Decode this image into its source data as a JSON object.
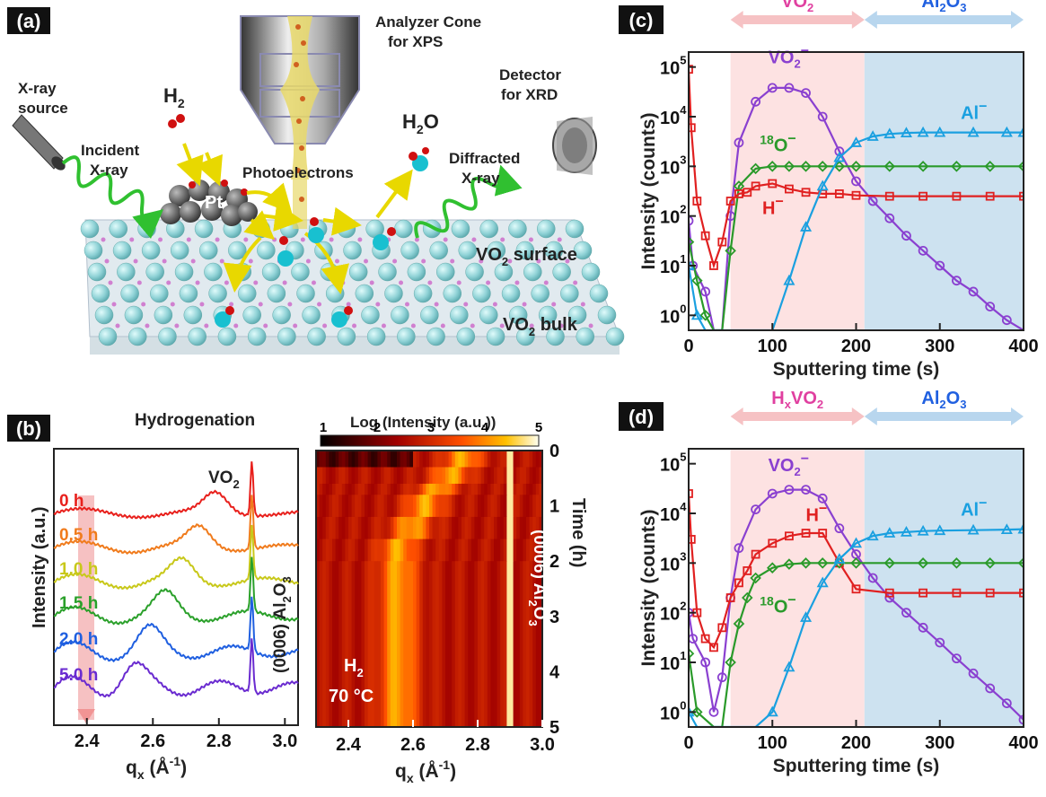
{
  "panel_a": {
    "label": "(a)",
    "labels": {
      "xray_source_1": "X-ray",
      "xray_source_2": "source",
      "incident_1": "Incident",
      "incident_2": "X-ray",
      "h2": "H",
      "h2_sub": "2",
      "analyzer_1": "Analyzer Cone",
      "analyzer_2": "for XPS",
      "detector_1": "Detector",
      "detector_2": "for XRD",
      "h2o_h": "H",
      "h2o_sub": "2",
      "h2o_o": "O",
      "diffracted_1": "Diffracted",
      "diffracted_2": "X-ray",
      "photoelectrons": "Photoelectrons",
      "pt": "Pt",
      "vo2_surface_a": "VO",
      "vo2_surface_sub": "2",
      "vo2_surface_b": " surface",
      "vo2_bulk_a": "VO",
      "vo2_bulk_sub": "2",
      "vo2_bulk_b": " bulk"
    }
  },
  "panel_b": {
    "label": "(b)",
    "title": "Hydrogenation",
    "left_ylabel": "Intensity (a.u.)",
    "left_xlabel_q": "q",
    "left_xlabel_sub": "x",
    "left_xlabel_unit": " (Å",
    "left_xlabel_exp": "-1",
    "left_xlabel_close": ")",
    "vo2_a": "VO",
    "vo2_sub": "2",
    "al2o3_peak": "(0006) Al",
    "al2o3_peak_sub1": "2",
    "al2o3_peak_o": "O",
    "al2o3_peak_sub2": "3",
    "xticks": [
      "2.4",
      "2.6",
      "2.8",
      "3.0"
    ],
    "curve_labels": [
      "0 h",
      "0.5 h",
      "1.0 h",
      "1.5 h",
      "2.0 h",
      "5.0 h"
    ],
    "curve_colors": [
      "#e8201c",
      "#f07b1c",
      "#c8c81a",
      "#2aa02a",
      "#1f5fe0",
      "#6a2bd0"
    ],
    "heatmap_colorbar_title": "Log (Intensity (a.u.))",
    "colorbar_ticks": [
      "1",
      "2",
      "3",
      "4",
      "5"
    ],
    "heatmap_xticks": [
      "2.4",
      "2.6",
      "2.8",
      "3.0"
    ],
    "heatmap_yticks": [
      "0",
      "1",
      "2",
      "3",
      "4",
      "5"
    ],
    "heatmap_ylabel": "Time (h)",
    "h2_a": "H",
    "h2_sub": "2",
    "temp": "70 °C"
  },
  "chart_data": [
    {
      "type": "line",
      "panel": "(c)",
      "xlabel": "Sputtering time (s)",
      "ylabel": "Intensity (counts)",
      "xlim": [
        0,
        400
      ],
      "ylim": [
        0.5,
        200000
      ],
      "yscale": "log",
      "xticks": [
        "0",
        "100",
        "200",
        "300",
        "400"
      ],
      "yticks_base": "10",
      "yticks_exp": [
        "0",
        "1",
        "2",
        "3",
        "4",
        "5"
      ],
      "region_labels": {
        "left": "VO",
        "left_sub": "2",
        "right": "Al",
        "right_sub1": "2",
        "right_o": "O",
        "right_sub2": "3"
      },
      "series": [
        {
          "name": "VO2−",
          "label": "VO",
          "label_sub": "2",
          "label_sup": "−",
          "color": "#8a40d0",
          "marker": "circle",
          "x": [
            0,
            5,
            20,
            30,
            40,
            50,
            60,
            80,
            100,
            120,
            140,
            160,
            180,
            200,
            220,
            240,
            260,
            280,
            300,
            320,
            340,
            360,
            380,
            400
          ],
          "y": [
            80,
            10,
            3,
            0.3,
            0.3,
            100,
            3000,
            20000,
            38000,
            38000,
            30000,
            10000,
            2000,
            500,
            200,
            90,
            40,
            20,
            10,
            5,
            3,
            1.5,
            0.8,
            0.5
          ]
        },
        {
          "name": "18O−",
          "label": "O",
          "label_pre": "18",
          "label_sup": "−",
          "color": "#2a9a2a",
          "marker": "diamond",
          "x": [
            0,
            10,
            20,
            30,
            40,
            50,
            60,
            80,
            100,
            120,
            140,
            160,
            180,
            200,
            240,
            280,
            320,
            360,
            400
          ],
          "y": [
            30,
            5,
            1,
            0.3,
            0.3,
            20,
            400,
            900,
            1000,
            1000,
            1000,
            1000,
            1000,
            1000,
            1000,
            1000,
            1000,
            1000,
            1000
          ]
        },
        {
          "name": "H−",
          "label": "H",
          "label_sup": "−",
          "color": "#e02020",
          "marker": "square",
          "x": [
            0,
            3,
            10,
            20,
            30,
            40,
            50,
            60,
            70,
            80,
            100,
            120,
            140,
            160,
            180,
            200,
            240,
            280,
            320,
            360,
            400
          ],
          "y": [
            90000,
            6000,
            200,
            40,
            10,
            30,
            200,
            280,
            300,
            400,
            450,
            350,
            300,
            280,
            280,
            260,
            250,
            250,
            250,
            250,
            250
          ]
        },
        {
          "name": "Al−",
          "label": "Al",
          "label_sup": "−",
          "color": "#1aa0e0",
          "marker": "triangle",
          "x": [
            0,
            10,
            20,
            60,
            80,
            100,
            120,
            140,
            160,
            180,
            200,
            220,
            240,
            260,
            280,
            300,
            340,
            380,
            400
          ],
          "y": [
            10,
            1,
            0.3,
            0.3,
            0.3,
            0.5,
            5,
            60,
            400,
            1500,
            3000,
            4000,
            4500,
            4700,
            4800,
            4800,
            4800,
            4800,
            4800
          ]
        }
      ]
    },
    {
      "type": "line",
      "panel": "(d)",
      "xlabel": "Sputtering time (s)",
      "ylabel": "Intensity (counts)",
      "xlim": [
        0,
        400
      ],
      "ylim": [
        0.5,
        200000
      ],
      "yscale": "log",
      "xticks": [
        "0",
        "100",
        "200",
        "300",
        "400"
      ],
      "yticks_base": "10",
      "yticks_exp": [
        "0",
        "1",
        "2",
        "3",
        "4",
        "5"
      ],
      "region_labels": {
        "left": "H",
        "left_sub1": "x",
        "left_v": "VO",
        "left_sub2": "2",
        "right": "Al",
        "right_sub1": "2",
        "right_o": "O",
        "right_sub2": "3"
      },
      "series": [
        {
          "name": "VO2−",
          "label": "VO",
          "label_sub": "2",
          "label_sup": "−",
          "color": "#8a40d0",
          "marker": "circle",
          "x": [
            0,
            5,
            20,
            30,
            40,
            50,
            60,
            80,
            100,
            120,
            140,
            160,
            180,
            200,
            220,
            240,
            260,
            280,
            300,
            320,
            340,
            360,
            380,
            400
          ],
          "y": [
            100,
            30,
            10,
            1,
            5,
            200,
            2000,
            12000,
            25000,
            30000,
            30000,
            20000,
            5000,
            1500,
            500,
            200,
            100,
            50,
            25,
            12,
            6,
            3,
            1.5,
            0.7
          ]
        },
        {
          "name": "H−",
          "label": "H",
          "label_sup": "−",
          "color": "#e02020",
          "marker": "square",
          "x": [
            0,
            3,
            10,
            20,
            30,
            40,
            50,
            60,
            70,
            80,
            100,
            120,
            140,
            160,
            180,
            200,
            240,
            280,
            320,
            360,
            400
          ],
          "y": [
            25000,
            3000,
            100,
            30,
            20,
            50,
            200,
            400,
            700,
            1500,
            2500,
            3500,
            4000,
            4000,
            1000,
            300,
            250,
            250,
            250,
            250,
            250
          ]
        },
        {
          "name": "18O−",
          "label": "O",
          "label_pre": "18",
          "label_sup": "−",
          "color": "#2a9a2a",
          "marker": "diamond",
          "x": [
            0,
            10,
            30,
            40,
            50,
            60,
            70,
            80,
            100,
            120,
            140,
            160,
            180,
            200,
            240,
            280,
            320,
            360,
            400
          ],
          "y": [
            15,
            1,
            0.3,
            0.3,
            10,
            60,
            200,
            500,
            800,
            950,
            1000,
            1000,
            1000,
            1000,
            1000,
            1000,
            1000,
            1000,
            1000
          ]
        },
        {
          "name": "Al−",
          "label": "Al",
          "label_sup": "−",
          "color": "#1aa0e0",
          "marker": "triangle",
          "x": [
            0,
            10,
            20,
            80,
            100,
            120,
            140,
            160,
            180,
            200,
            220,
            240,
            260,
            280,
            300,
            340,
            380,
            400
          ],
          "y": [
            1,
            0.3,
            0.3,
            0.3,
            1,
            8,
            80,
            400,
            1200,
            2500,
            3500,
            4000,
            4200,
            4400,
            4500,
            4600,
            4700,
            4800
          ]
        }
      ]
    }
  ]
}
